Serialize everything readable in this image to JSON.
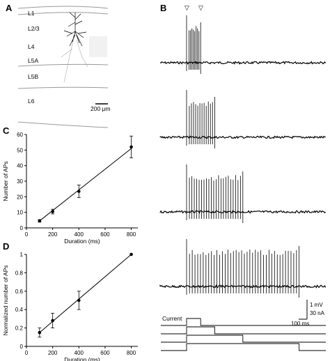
{
  "panels": {
    "A": "A",
    "B": "B",
    "C": "C",
    "D": "D"
  },
  "panel_a": {
    "layers": [
      "L1",
      "L2/3",
      "L4",
      "L5A",
      "L5B",
      "L6"
    ],
    "scalebar_label": "200 μm"
  },
  "panel_b": {
    "current_label": "Current",
    "scale_mv": "1 mV",
    "scale_na": "30 nA",
    "scale_ms": "100 ms",
    "marker_glyph": "▽",
    "traces": [
      {
        "spikes": 8,
        "duration_ms": 100
      },
      {
        "spikes": 12,
        "duration_ms": 200
      },
      {
        "spikes": 22,
        "duration_ms": 400
      },
      {
        "spikes": 40,
        "duration_ms": 800
      }
    ]
  },
  "chart_data": [
    {
      "type": "line",
      "panel": "C",
      "xlabel": "Duration (ms)",
      "ylabel": "Number of APs",
      "xlim": [
        0,
        850
      ],
      "ylim": [
        0,
        60
      ],
      "xticks": [
        "0",
        "200",
        "400",
        "600",
        "800"
      ],
      "yticks": [
        "0",
        "10",
        "20",
        "30",
        "40",
        "50",
        "60"
      ],
      "x": [
        100,
        200,
        400,
        800
      ],
      "y": [
        4.5,
        10.5,
        23.5,
        52
      ],
      "err": [
        0.8,
        1.5,
        4,
        7
      ],
      "fit": [
        [
          100,
          4.5
        ],
        [
          800,
          51
        ]
      ]
    },
    {
      "type": "line",
      "panel": "D",
      "xlabel": "Duration (ms)",
      "ylabel": "Normalized number of APs",
      "xlim": [
        0,
        850
      ],
      "ylim": [
        0,
        1
      ],
      "xticks": [
        "0",
        "200",
        "400",
        "600",
        "800"
      ],
      "yticks": [
        "0",
        "0.2",
        "0.4",
        "0.6",
        "0.8",
        "1"
      ],
      "x": [
        100,
        200,
        400,
        800
      ],
      "y": [
        0.15,
        0.28,
        0.5,
        1.0
      ],
      "err": [
        0.05,
        0.08,
        0.1,
        0
      ],
      "fit": [
        [
          100,
          0.15
        ],
        [
          800,
          1.0
        ]
      ]
    }
  ]
}
